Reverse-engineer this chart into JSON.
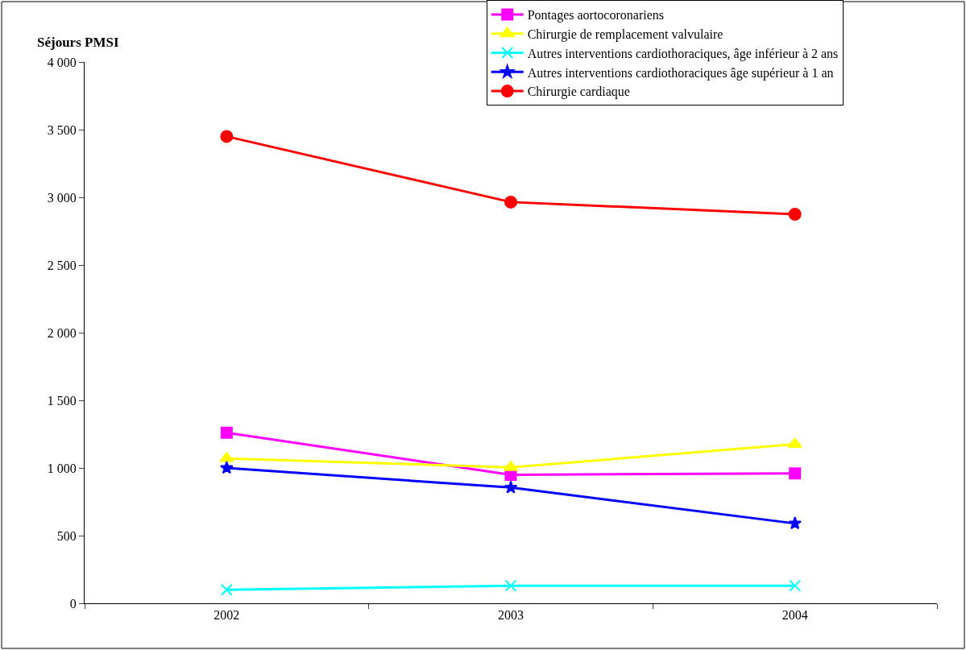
{
  "chart_data": {
    "type": "line",
    "ylabel": "Séjours PMSI",
    "categories": [
      "2002",
      "2003",
      "2004"
    ],
    "series": [
      {
        "name": "Pontages aortocoronariens",
        "color": "#ff00ff",
        "marker": "square",
        "values": [
          1260,
          950,
          960
        ]
      },
      {
        "name": "Chirurgie de remplacement valvulaire",
        "color": "#ffff00",
        "marker": "triangle",
        "values": [
          1070,
          1005,
          1175
        ]
      },
      {
        "name": "Autres interventions cardiothoraciques, âge inférieur à 2 ans",
        "color": "#00ffff",
        "marker": "cross",
        "values": [
          100,
          130,
          130
        ]
      },
      {
        "name": "Autres interventions cardiothoraciques âge supérieur à 1 an",
        "color": "#0000ff",
        "marker": "star",
        "values": [
          1000,
          855,
          590
        ]
      },
      {
        "name": "Chirurgie cardiaque",
        "color": "#ff0000",
        "marker": "circle",
        "values": [
          3450,
          2965,
          2875
        ]
      }
    ],
    "ylim": [
      0,
      4000
    ],
    "yticks": [
      {
        "value": 0,
        "label": "0"
      },
      {
        "value": 500,
        "label": "500"
      },
      {
        "value": 1000,
        "label": "1 000"
      },
      {
        "value": 1500,
        "label": "1 500"
      },
      {
        "value": 2000,
        "label": "2 000"
      },
      {
        "value": 2500,
        "label": "2 500"
      },
      {
        "value": 3000,
        "label": "3 000"
      },
      {
        "value": 3500,
        "label": "3 500"
      },
      {
        "value": 4000,
        "label": "4 000"
      }
    ],
    "grid": false,
    "legend": "top right",
    "line_style": "solid"
  }
}
